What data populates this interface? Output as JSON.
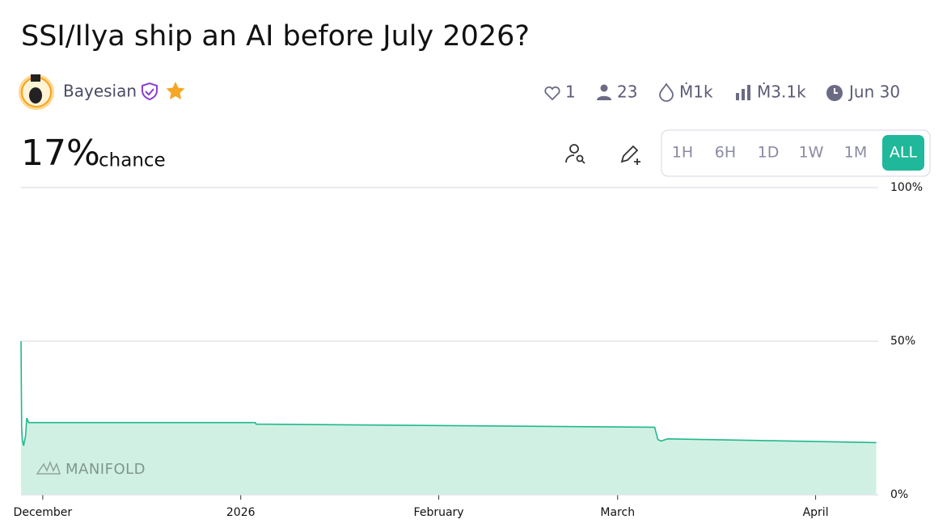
{
  "header": {
    "title": "SSI/Ilya ship an AI before July 2026?",
    "creator": "Bayesian",
    "stats": {
      "likes": "1",
      "traders": "23",
      "volume": "Ṁ1k",
      "total": "Ṁ3.1k",
      "close": "Jun 30"
    },
    "probability": "17%",
    "probability_label": "chance",
    "time_buttons": [
      "1H",
      "6H",
      "1D",
      "1W",
      "1M",
      "ALL"
    ],
    "selected_button": "ALL"
  },
  "chart_data": {
    "type": "area",
    "watermark": "MANIFOLD",
    "x": [
      -3.4,
      -3.35,
      -3.3,
      -3.2,
      -3.0,
      -2.7,
      -2.5,
      -2.2,
      33.3,
      33.4,
      95.8,
      96.3,
      96.8,
      97.8,
      130.5
    ],
    "series": [
      {
        "name": "Probability",
        "color": "#20b98b",
        "fill": "#d1f0e4",
        "values": [
          50,
          35,
          22,
          18,
          16,
          19,
          25,
          23.5,
          23.5,
          23,
          22,
          18,
          17.5,
          18.2,
          17
        ]
      }
    ],
    "xlim": [
      -3.4,
      130.8
    ],
    "xticks": [
      {
        "value": 0,
        "label": "December"
      },
      {
        "value": 31,
        "label": "2026"
      },
      {
        "value": 62,
        "label": "February"
      },
      {
        "value": 90,
        "label": "March"
      },
      {
        "value": 121,
        "label": "April"
      }
    ],
    "ylim": [
      0,
      100
    ],
    "yticks": [
      {
        "value": 0,
        "label": "0%"
      },
      {
        "value": 50,
        "label": "50%"
      },
      {
        "value": 100,
        "label": "100%"
      }
    ],
    "grid": true
  }
}
